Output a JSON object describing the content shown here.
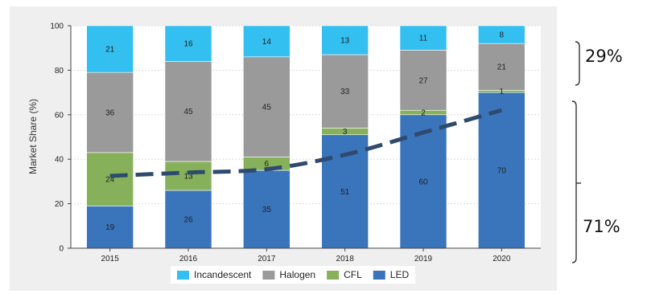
{
  "chart_data": {
    "type": "bar",
    "stacked": true,
    "categories": [
      "2015",
      "2016",
      "2017",
      "2018",
      "2019",
      "2020"
    ],
    "series": [
      {
        "name": "LED",
        "color": "#3a74bb",
        "values": [
          19,
          26,
          35,
          51,
          60,
          70
        ]
      },
      {
        "name": "CFL",
        "color": "#86b15a",
        "values": [
          24,
          13,
          6,
          3,
          2,
          1
        ]
      },
      {
        "name": "Halogen",
        "color": "#9a9a9a",
        "values": [
          36,
          45,
          45,
          33,
          27,
          21
        ]
      },
      {
        "name": "Incandescent",
        "color": "#33bff0",
        "values": [
          21,
          16,
          14,
          13,
          11,
          8
        ]
      }
    ],
    "legend_order": [
      "Incandescent",
      "Halogen",
      "CFL",
      "LED"
    ],
    "ylabel": "Market Share (%)",
    "xlabel": "",
    "ylim": [
      0,
      100
    ],
    "yticks": [
      0,
      20,
      40,
      60,
      80,
      100
    ],
    "grid": true,
    "legend_position": "bottom",
    "trend_line": {
      "style": "dashed",
      "color": "#2e4a6e",
      "x": [
        "2015",
        "2016",
        "2017",
        "2018",
        "2019",
        "2020"
      ],
      "y": [
        32.5,
        34,
        35.5,
        42,
        52,
        62
      ]
    },
    "annotations": [
      {
        "text": "29%",
        "refers_to": "upper bracket"
      },
      {
        "text": "71%",
        "refers_to": "lower bracket"
      }
    ]
  }
}
